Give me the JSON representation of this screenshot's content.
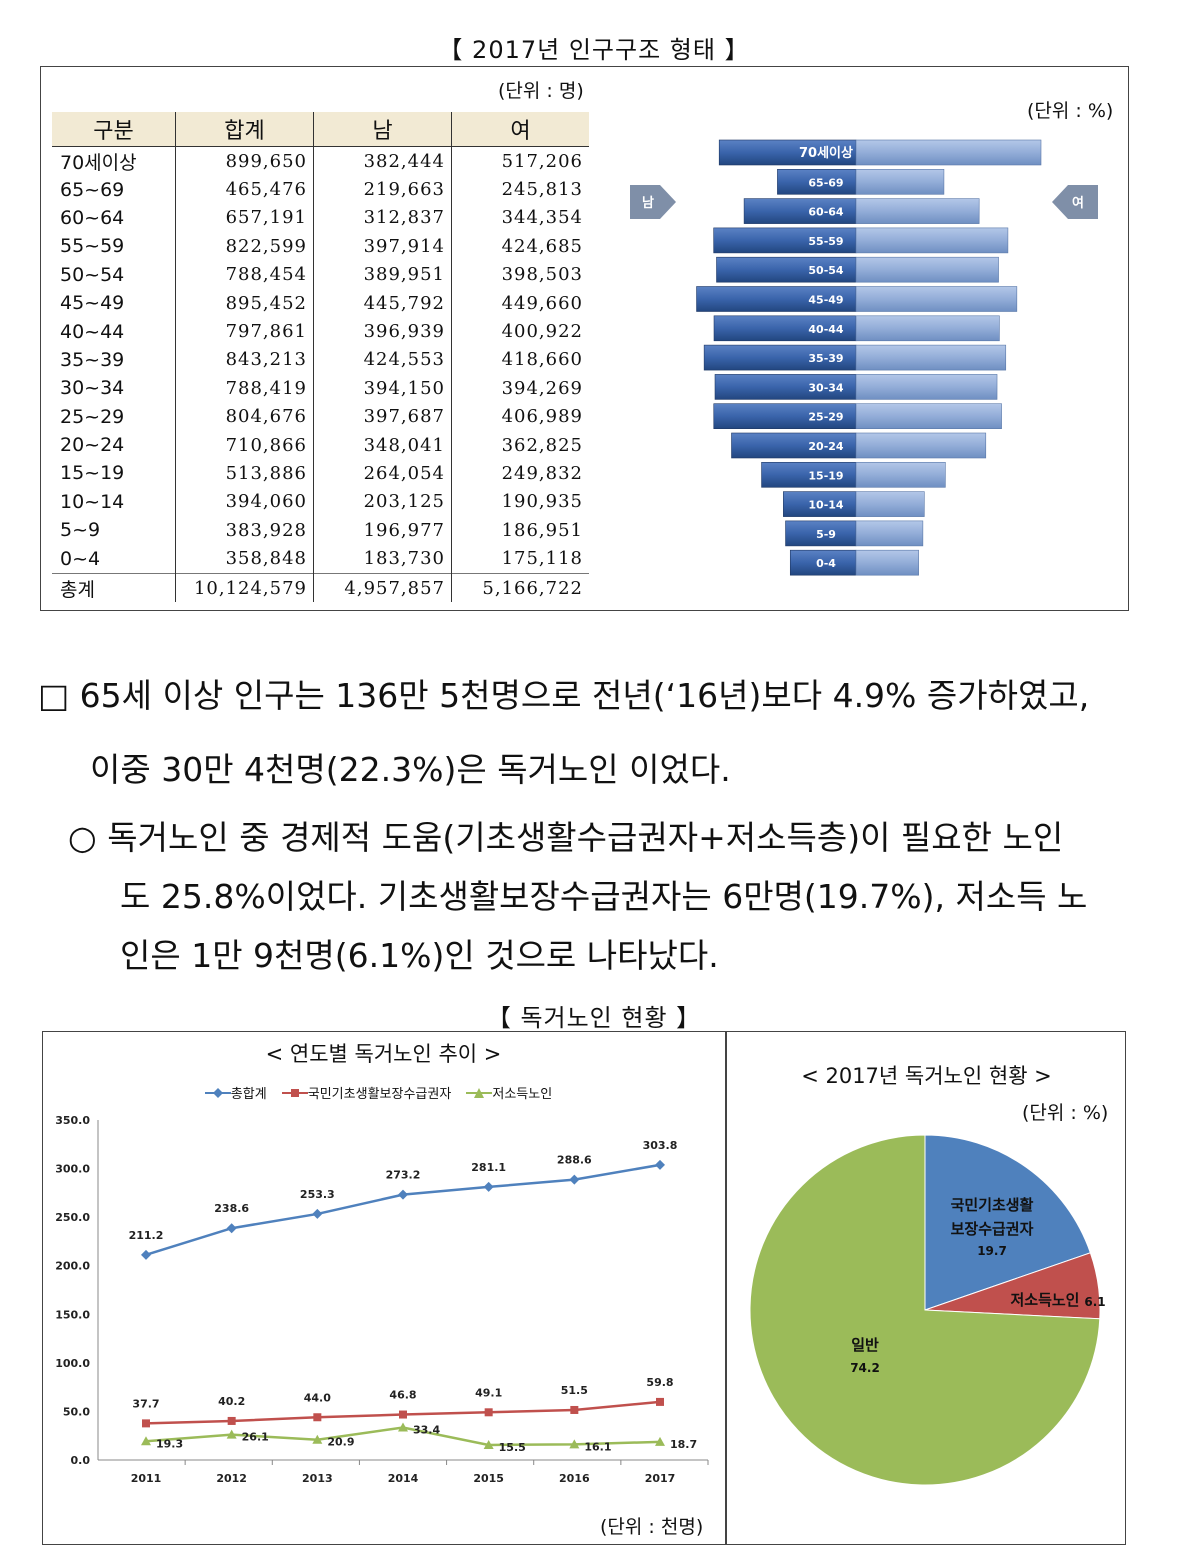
{
  "top_title": "【 2017년 인구구조 형태 】",
  "table_unit": "(단위 : 명)",
  "pyramid_unit": "(단위 : %)",
  "table": {
    "headers": [
      "구분",
      "합계",
      "남",
      "여"
    ],
    "rows": [
      [
        "70세이상",
        "899,650",
        "382,444",
        "517,206"
      ],
      [
        "65~69",
        "465,476",
        "219,663",
        "245,813"
      ],
      [
        "60~64",
        "657,191",
        "312,837",
        "344,354"
      ],
      [
        "55~59",
        "822,599",
        "397,914",
        "424,685"
      ],
      [
        "50~54",
        "788,454",
        "389,951",
        "398,503"
      ],
      [
        "45~49",
        "895,452",
        "445,792",
        "449,660"
      ],
      [
        "40~44",
        "797,861",
        "396,939",
        "400,922"
      ],
      [
        "35~39",
        "843,213",
        "424,553",
        "418,660"
      ],
      [
        "30~34",
        "788,419",
        "394,150",
        "394,269"
      ],
      [
        "25~29",
        "804,676",
        "397,687",
        "406,989"
      ],
      [
        "20~24",
        "710,866",
        "348,041",
        "362,825"
      ],
      [
        "15~19",
        "513,886",
        "264,054",
        "249,832"
      ],
      [
        "10~14",
        "394,060",
        "203,125",
        "190,935"
      ],
      [
        "5~9",
        "383,928",
        "196,977",
        "186,951"
      ],
      [
        "0~4",
        "358,848",
        "183,730",
        "175,118"
      ],
      [
        "총계",
        "10,124,579",
        "4,957,857",
        "5,166,722"
      ]
    ]
  },
  "pyramid": {
    "male_label": "남",
    "female_label": "여",
    "groups": [
      "70세이상",
      "65~69",
      "60~64",
      "55~59",
      "50~54",
      "45~49",
      "40~44",
      "35~39",
      "30~34",
      "25~29",
      "20~24",
      "15~19",
      "10~14",
      "5~9",
      "0~4"
    ],
    "bar_labels": [
      "70세이상",
      "65-69",
      "60-64",
      "55-59",
      "50-54",
      "45-49",
      "40-44",
      "35-39",
      "30-34",
      "25-29",
      "20-24",
      "15-19",
      "10-14",
      "5-9",
      "0-4"
    ],
    "male": [
      382444,
      219663,
      312837,
      397914,
      389951,
      445792,
      396939,
      424553,
      394150,
      397687,
      348041,
      264054,
      203125,
      196977,
      183730
    ],
    "female": [
      517206,
      245813,
      344354,
      424685,
      398503,
      449660,
      400922,
      418660,
      394269,
      406989,
      362825,
      249832,
      190935,
      186951,
      175118
    ],
    "colors": {
      "male": "#2f5597",
      "female": "#8ea9db"
    }
  },
  "paragraphs": {
    "p1_line1": "□ 65세 이상 인구는 136만 5천명으로 전년(‘16년)보다 4.9% 증가하였고,",
    "p1_line2": "이중 30만 4천명(22.3%)은 독거노인 이었다.",
    "p2_line1": "○ 독거노인 중 경제적 도움(기초생활수급권자+저소득층)이 필요한 노인",
    "p2_line2": "도 25.8%이었다. 기초생활보장수급권자는 6만명(19.7%), 저소득 노",
    "p2_line3": "인은 1만 9천명(6.1%)인 것으로 나타났다."
  },
  "bottom_title": "【 독거노인 현황 】",
  "chart_data": [
    {
      "type": "line",
      "title": "< 연도별  독거노인 추이 >",
      "unit": "(단위 : 천명)",
      "x": [
        "2011",
        "2012",
        "2013",
        "2014",
        "2015",
        "2016",
        "2017"
      ],
      "ylim": [
        0,
        350
      ],
      "yticks": [
        "0.0",
        "50.0",
        "100.0",
        "150.0",
        "200.0",
        "250.0",
        "300.0",
        "350.0"
      ],
      "series": [
        {
          "name": "총합계",
          "values": [
            211.2,
            238.6,
            253.3,
            273.2,
            281.1,
            288.6,
            303.8
          ],
          "color": "#4f81bd",
          "marker": "diamond"
        },
        {
          "name": "국민기초생활보장수급권자",
          "values": [
            37.7,
            40.2,
            44.0,
            46.8,
            49.1,
            51.5,
            59.8
          ],
          "color": "#c0504d",
          "marker": "square"
        },
        {
          "name": "저소득노인",
          "values": [
            19.3,
            26.1,
            20.9,
            33.4,
            15.5,
            16.1,
            18.7
          ],
          "color": "#9bbb59",
          "marker": "triangle"
        }
      ],
      "labels": [
        [
          "211.2",
          "238.6",
          "253.3",
          "273.2",
          "281.1",
          "288.6",
          "303.8"
        ],
        [
          "37.7",
          "40.2",
          "44.0",
          "46.8",
          "49.1",
          "51.5",
          "59.8"
        ],
        [
          "19.3",
          "26.1",
          "20.9",
          "33.4",
          "15.5",
          "16.1",
          "18.7"
        ]
      ]
    },
    {
      "type": "pie",
      "title": "< 2017년 독거노인 현황 >",
      "unit": "(단위 : %)",
      "slices": [
        {
          "name": "국민기초생활보장수급권자",
          "label_line1": "국민기초생활",
          "label_line2": "보장수급권자",
          "value": 19.7,
          "value_text": "19.7",
          "color": "#4f81bd"
        },
        {
          "name": "저소득노인",
          "label_line1": "저소득노인",
          "value": 6.1,
          "value_text": "6.1",
          "color": "#c0504d"
        },
        {
          "name": "일반",
          "label_line1": "일반",
          "value": 74.2,
          "value_text": "74.2",
          "color": "#9bbb59"
        }
      ]
    }
  ]
}
